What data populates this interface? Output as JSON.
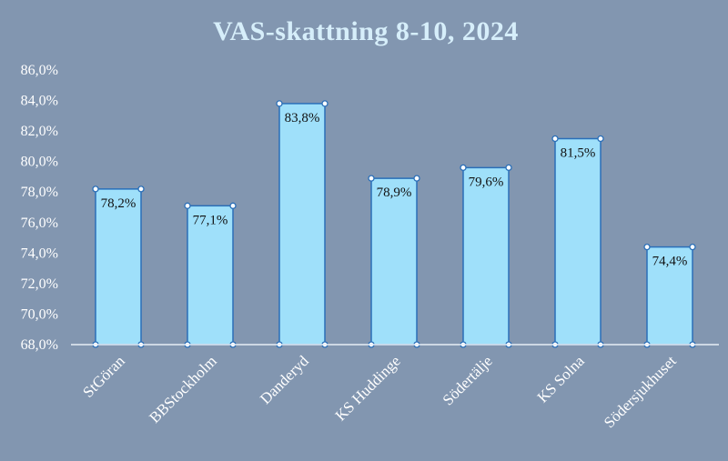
{
  "chart_data": {
    "type": "bar",
    "title": "VAS-skattning 8-10, 2024",
    "categories": [
      "StGöran",
      "BBStockholm",
      "Danderyd",
      "KS Huddinge",
      "Södertälje",
      "KS Solna",
      "Södersjukhuset"
    ],
    "values": [
      78.2,
      77.1,
      83.8,
      78.9,
      79.6,
      81.5,
      74.4
    ],
    "data_labels": [
      "78,2%",
      "77,1%",
      "83,8%",
      "78,9%",
      "79,6%",
      "81,5%",
      "74,4%"
    ],
    "ylim": [
      68,
      86
    ],
    "yticks": [
      68,
      70,
      72,
      74,
      76,
      78,
      80,
      82,
      84,
      86
    ],
    "ytick_labels": [
      "68,0%",
      "70,0%",
      "72,0%",
      "74,0%",
      "76,0%",
      "78,0%",
      "80,0%",
      "82,0%",
      "84,0%",
      "86,0%"
    ],
    "xlabel": "",
    "ylabel": "",
    "grid": false,
    "colors": {
      "background": "#8296b0",
      "bar_fill": "#9fe0fa",
      "bar_stroke": "#2a6fb8",
      "title": "#d6eefa",
      "axis_text": "#ffffff"
    }
  }
}
